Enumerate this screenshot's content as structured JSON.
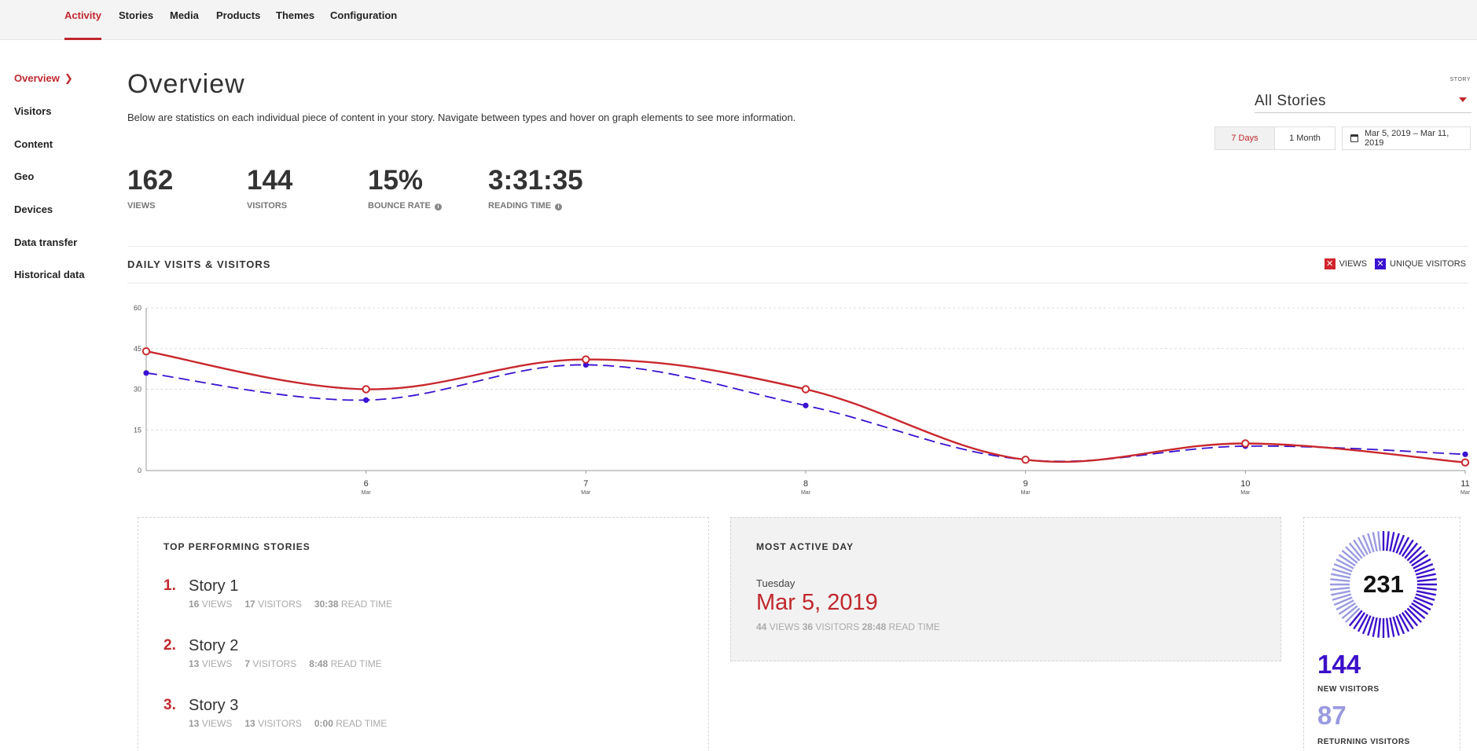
{
  "nav": {
    "tabs": [
      {
        "label": "Activity",
        "active": true
      },
      {
        "label": "Stories"
      },
      {
        "label": "Media"
      },
      {
        "label": "Products"
      },
      {
        "label": "Themes"
      },
      {
        "label": "Configuration"
      }
    ]
  },
  "sidebar": {
    "items": [
      {
        "label": "Overview",
        "active": true
      },
      {
        "label": "Visitors"
      },
      {
        "label": "Content"
      },
      {
        "label": "Geo"
      },
      {
        "label": "Devices"
      },
      {
        "label": "Data transfer"
      },
      {
        "label": "Historical data"
      }
    ]
  },
  "header": {
    "title": "Overview",
    "description": "Below are statistics on each individual piece of content in your story. Navigate between types and hover on graph elements to see more information."
  },
  "story_filter": {
    "label": "STORY",
    "value": "All Stories"
  },
  "range": {
    "options": [
      "7 Days",
      "1 Month"
    ],
    "selected": "7 Days",
    "dates": "Mar 5, 2019 – Mar 11, 2019"
  },
  "stats": [
    {
      "value": "162",
      "label": "VIEWS",
      "info": false
    },
    {
      "value": "144",
      "label": "VISITORS",
      "info": false
    },
    {
      "value": "15%",
      "label": "BOUNCE RATE",
      "info": true
    },
    {
      "value": "3:31:35",
      "label": "READING TIME",
      "info": true
    }
  ],
  "chart_section": {
    "title": "DAILY VISITS & VISITORS",
    "legend": [
      {
        "label": "VIEWS",
        "color": "#d0262d"
      },
      {
        "label": "UNIQUE VISITORS",
        "color": "#3a12d1"
      }
    ]
  },
  "chart_data": {
    "type": "line",
    "x": [
      "5",
      "6",
      "7",
      "8",
      "9",
      "10",
      "11"
    ],
    "x_labels": [
      "",
      "6",
      "7",
      "8",
      "9",
      "10",
      "11"
    ],
    "x_sublabel": "Mar",
    "yticks": [
      0,
      15,
      30,
      45,
      60
    ],
    "ylim": [
      0,
      60
    ],
    "grid": true,
    "legend_position": "top-right",
    "series": [
      {
        "name": "VIEWS",
        "values": [
          44,
          30,
          41,
          30,
          4,
          10,
          3
        ],
        "color": "#c8282e",
        "style": "solid"
      },
      {
        "name": "UNIQUE VISITORS",
        "values": [
          36,
          26,
          39,
          24,
          4,
          9,
          6
        ],
        "color": "#3a12d1",
        "style": "dashed"
      }
    ]
  },
  "top_stories": {
    "title": "TOP PERFORMING STORIES",
    "items": [
      {
        "rank": "1.",
        "name": "Story 1",
        "views": "16",
        "visitors": "17",
        "read": "30:38"
      },
      {
        "rank": "2.",
        "name": "Story 2",
        "views": "13",
        "visitors": "7",
        "read": "8:48"
      },
      {
        "rank": "3.",
        "name": "Story 3",
        "views": "13",
        "visitors": "13",
        "read": "0:00"
      }
    ],
    "views_label": "VIEWS",
    "visitors_label": "VISITORS",
    "read_label": "READ TIME"
  },
  "most_active": {
    "title": "MOST ACTIVE DAY",
    "weekday": "Tuesday",
    "date": "Mar 5, 2019",
    "views": "44",
    "visitors": "36",
    "read": "28:48"
  },
  "visitors_summary": {
    "total": "231",
    "new_count": "144",
    "new_label": "NEW VISITORS",
    "returning_count": "87",
    "returning_label": "RETURNING VISITORS",
    "new_color": "#3c10c9",
    "returning_color": "#9a9ae0"
  }
}
